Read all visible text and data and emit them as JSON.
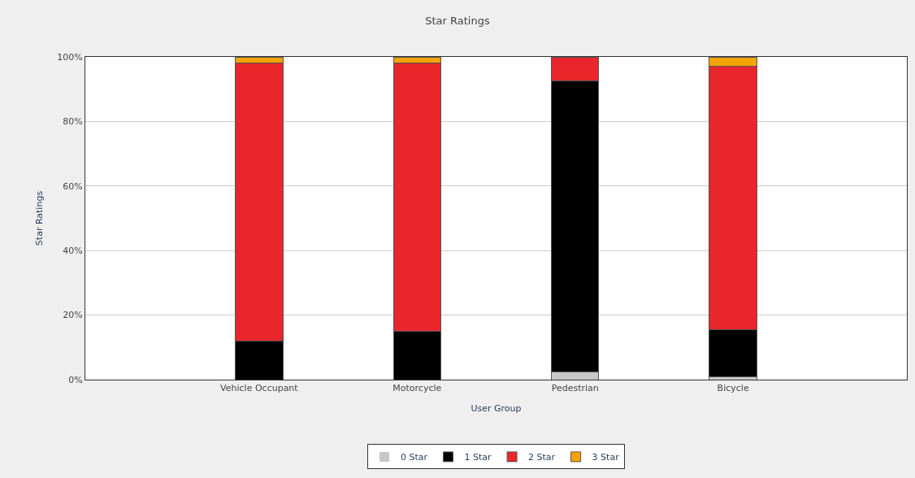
{
  "chart_data": {
    "type": "bar",
    "stacked": true,
    "title": "Star Ratings",
    "xlabel": "User Group",
    "ylabel": "Star Ratings",
    "categories": [
      "Vehicle Occupant",
      "Motorcycle",
      "Pedestrian",
      "Bicycle"
    ],
    "series": [
      {
        "name": "0 Star",
        "color": "#c8c8c8",
        "values": [
          0,
          0,
          2.5,
          1
        ]
      },
      {
        "name": "1 Star",
        "color": "#000000",
        "values": [
          12,
          15,
          90,
          14.5
        ]
      },
      {
        "name": "2 Star",
        "color": "#e8262b",
        "values": [
          86,
          83,
          7.5,
          81.5
        ]
      },
      {
        "name": "3 Star",
        "color": "#f5a300",
        "values": [
          2,
          2,
          0,
          3
        ]
      }
    ],
    "ylim": [
      0,
      100
    ],
    "yticks": [
      {
        "value": 0,
        "label": "0%"
      },
      {
        "value": 20,
        "label": "20%"
      },
      {
        "value": 40,
        "label": "40%"
      },
      {
        "value": 60,
        "label": "60%"
      },
      {
        "value": 80,
        "label": "80%"
      },
      {
        "value": 100,
        "label": "100%"
      }
    ],
    "grid": "y",
    "legend": "bottom"
  }
}
